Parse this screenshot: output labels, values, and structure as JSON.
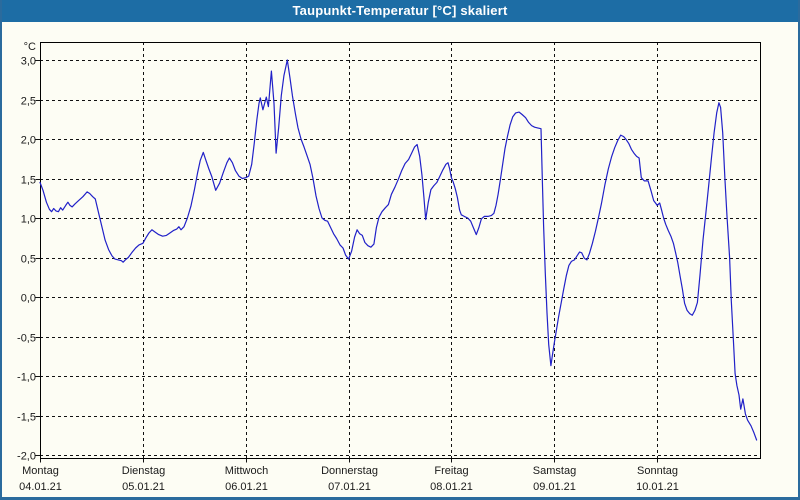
{
  "window": {
    "title": "Taupunkt-Temperatur [°C] skaliert",
    "title_bar_color": "#1d6da5",
    "frame_border_color": "#2b6b9d",
    "background_color": "#fdfdf4"
  },
  "chart_data": {
    "type": "line",
    "title": "Taupunkt-Temperatur [°C] skaliert",
    "grid": "dashed-black",
    "legend": "none",
    "plot_border_color": "#000000",
    "y_axis": {
      "unit_label": "°C",
      "min": -2.0,
      "max": 3.0,
      "step": 0.5,
      "tick_labels": [
        "3,0",
        "2,5",
        "2,0",
        "1,5",
        "1,0",
        "0,5",
        "0,0",
        "-0,5",
        "-1,0",
        "-1,5",
        "-2,0"
      ]
    },
    "x_axis": {
      "hours_total": 168,
      "days": [
        {
          "weekday": "Montag",
          "date": "04.01.21"
        },
        {
          "weekday": "Dienstag",
          "date": "05.01.21"
        },
        {
          "weekday": "Mittwoch",
          "date": "06.01.21"
        },
        {
          "weekday": "Donnerstag",
          "date": "07.01.21"
        },
        {
          "weekday": "Freitag",
          "date": "08.01.21"
        },
        {
          "weekday": "Samstag",
          "date": "09.01.21"
        },
        {
          "weekday": "Sonntag",
          "date": "10.01.21"
        }
      ]
    },
    "series": [
      {
        "name": "Taupunkt-Temperatur",
        "color": "#2121c8",
        "points_t_hours_value_c": [
          [
            0,
            1.45
          ],
          [
            0.7,
            1.35
          ],
          [
            1.5,
            1.2
          ],
          [
            2.2,
            1.11
          ],
          [
            2.7,
            1.08
          ],
          [
            3.2,
            1.12
          ],
          [
            3.7,
            1.09
          ],
          [
            4.3,
            1.08
          ],
          [
            4.8,
            1.13
          ],
          [
            5.3,
            1.1
          ],
          [
            6,
            1.16
          ],
          [
            6.5,
            1.2
          ],
          [
            7,
            1.16
          ],
          [
            7.5,
            1.14
          ],
          [
            8.2,
            1.18
          ],
          [
            9,
            1.22
          ],
          [
            10,
            1.27
          ],
          [
            11,
            1.33
          ],
          [
            11.6,
            1.31
          ],
          [
            12.3,
            1.27
          ],
          [
            12.9,
            1.24
          ],
          [
            13.6,
            1.08
          ],
          [
            14.4,
            0.9
          ],
          [
            15.2,
            0.72
          ],
          [
            16,
            0.6
          ],
          [
            16.8,
            0.52
          ],
          [
            17.5,
            0.48
          ],
          [
            18.3,
            0.47
          ],
          [
            19,
            0.46
          ],
          [
            19.4,
            0.44
          ],
          [
            19.9,
            0.47
          ],
          [
            20.6,
            0.5
          ],
          [
            21.4,
            0.56
          ],
          [
            22.3,
            0.62
          ],
          [
            23.1,
            0.66
          ],
          [
            24,
            0.68
          ],
          [
            24.7,
            0.75
          ],
          [
            25.4,
            0.81
          ],
          [
            26.1,
            0.85
          ],
          [
            26.9,
            0.82
          ],
          [
            27.7,
            0.79
          ],
          [
            28.6,
            0.77
          ],
          [
            29.5,
            0.78
          ],
          [
            30.3,
            0.81
          ],
          [
            31.1,
            0.84
          ],
          [
            31.9,
            0.86
          ],
          [
            32.4,
            0.89
          ],
          [
            32.9,
            0.85
          ],
          [
            33.6,
            0.89
          ],
          [
            34.4,
            1.0
          ],
          [
            35.2,
            1.15
          ],
          [
            36,
            1.35
          ],
          [
            36.8,
            1.58
          ],
          [
            37.4,
            1.73
          ],
          [
            38.1,
            1.83
          ],
          [
            38.7,
            1.73
          ],
          [
            39.4,
            1.62
          ],
          [
            40.1,
            1.52
          ],
          [
            41,
            1.35
          ],
          [
            41.9,
            1.44
          ],
          [
            42.8,
            1.58
          ],
          [
            43.6,
            1.7
          ],
          [
            44.2,
            1.76
          ],
          [
            44.9,
            1.7
          ],
          [
            45.6,
            1.6
          ],
          [
            46.4,
            1.53
          ],
          [
            47.2,
            1.5
          ],
          [
            48,
            1.51
          ],
          [
            48.7,
            1.53
          ],
          [
            49.4,
            1.68
          ],
          [
            50,
            1.95
          ],
          [
            50.6,
            2.25
          ],
          [
            51.1,
            2.45
          ],
          [
            51.4,
            2.52
          ],
          [
            52,
            2.37
          ],
          [
            52.8,
            2.53
          ],
          [
            53.3,
            2.41
          ],
          [
            54,
            2.86
          ],
          [
            54.6,
            2.45
          ],
          [
            55.1,
            1.82
          ],
          [
            55.7,
            2.15
          ],
          [
            56.3,
            2.55
          ],
          [
            56.9,
            2.8
          ],
          [
            57.7,
            3.0
          ],
          [
            58.3,
            2.78
          ],
          [
            58.9,
            2.55
          ],
          [
            59.6,
            2.32
          ],
          [
            60.2,
            2.14
          ],
          [
            60.9,
            2.0
          ],
          [
            61.6,
            1.9
          ],
          [
            62.3,
            1.79
          ],
          [
            63,
            1.68
          ],
          [
            63.7,
            1.5
          ],
          [
            64.4,
            1.28
          ],
          [
            65.1,
            1.12
          ],
          [
            65.8,
            1.0
          ],
          [
            66.5,
            0.97
          ],
          [
            67.1,
            0.96
          ],
          [
            67.8,
            0.88
          ],
          [
            68.5,
            0.8
          ],
          [
            69.2,
            0.74
          ],
          [
            70,
            0.66
          ],
          [
            70.7,
            0.62
          ],
          [
            71.3,
            0.53
          ],
          [
            72,
            0.48
          ],
          [
            72.7,
            0.58
          ],
          [
            73.4,
            0.76
          ],
          [
            74,
            0.85
          ],
          [
            74.6,
            0.8
          ],
          [
            75.2,
            0.78
          ],
          [
            75.8,
            0.69
          ],
          [
            76.5,
            0.65
          ],
          [
            77.2,
            0.63
          ],
          [
            77.9,
            0.67
          ],
          [
            78.5,
            0.88
          ],
          [
            79.1,
            1.01
          ],
          [
            79.8,
            1.08
          ],
          [
            80.6,
            1.13
          ],
          [
            81.3,
            1.17
          ],
          [
            82,
            1.3
          ],
          [
            82.8,
            1.39
          ],
          [
            83.6,
            1.49
          ],
          [
            84.4,
            1.6
          ],
          [
            85.2,
            1.69
          ],
          [
            86,
            1.74
          ],
          [
            86.7,
            1.82
          ],
          [
            87.4,
            1.9
          ],
          [
            88,
            1.93
          ],
          [
            88.6,
            1.78
          ],
          [
            89.1,
            1.55
          ],
          [
            89.6,
            1.25
          ],
          [
            90,
            0.98
          ],
          [
            90.6,
            1.2
          ],
          [
            91.2,
            1.36
          ],
          [
            91.9,
            1.41
          ],
          [
            92.6,
            1.45
          ],
          [
            93.3,
            1.53
          ],
          [
            94,
            1.61
          ],
          [
            94.7,
            1.68
          ],
          [
            95.2,
            1.7
          ],
          [
            95.6,
            1.62
          ],
          [
            96,
            1.51
          ],
          [
            96.4,
            1.46
          ],
          [
            96.9,
            1.37
          ],
          [
            97.4,
            1.26
          ],
          [
            97.9,
            1.1
          ],
          [
            98.3,
            1.04
          ],
          [
            99,
            1.02
          ],
          [
            99.8,
            1.0
          ],
          [
            100.5,
            0.96
          ],
          [
            101.1,
            0.88
          ],
          [
            101.8,
            0.79
          ],
          [
            102.4,
            0.88
          ],
          [
            103,
            0.99
          ],
          [
            103.7,
            1.02
          ],
          [
            104.5,
            1.02
          ],
          [
            105.3,
            1.03
          ],
          [
            105.9,
            1.06
          ],
          [
            106.4,
            1.16
          ],
          [
            106.9,
            1.3
          ],
          [
            107.4,
            1.48
          ],
          [
            108,
            1.7
          ],
          [
            108.5,
            1.88
          ],
          [
            109.1,
            2.04
          ],
          [
            109.7,
            2.18
          ],
          [
            110.3,
            2.28
          ],
          [
            111,
            2.33
          ],
          [
            111.8,
            2.34
          ],
          [
            112.5,
            2.31
          ],
          [
            113.3,
            2.27
          ],
          [
            114,
            2.21
          ],
          [
            114.7,
            2.17
          ],
          [
            115.4,
            2.15
          ],
          [
            116.1,
            2.14
          ],
          [
            116.9,
            2.13
          ],
          [
            117.2,
            1.5
          ],
          [
            117.5,
            0.9
          ],
          [
            117.9,
            0.3
          ],
          [
            118.3,
            -0.2
          ],
          [
            118.7,
            -0.6
          ],
          [
            119.2,
            -0.87
          ],
          [
            119.6,
            -0.72
          ],
          [
            120,
            -0.58
          ],
          [
            120.5,
            -0.42
          ],
          [
            121,
            -0.25
          ],
          [
            121.6,
            -0.08
          ],
          [
            122.2,
            0.1
          ],
          [
            122.8,
            0.27
          ],
          [
            123.4,
            0.4
          ],
          [
            124,
            0.45
          ],
          [
            124.7,
            0.47
          ],
          [
            125.3,
            0.52
          ],
          [
            125.9,
            0.57
          ],
          [
            126.4,
            0.56
          ],
          [
            127,
            0.49
          ],
          [
            127.6,
            0.47
          ],
          [
            128.2,
            0.55
          ],
          [
            128.9,
            0.68
          ],
          [
            129.6,
            0.83
          ],
          [
            130.3,
            1.0
          ],
          [
            131,
            1.18
          ],
          [
            131.8,
            1.42
          ],
          [
            132.6,
            1.62
          ],
          [
            133.4,
            1.78
          ],
          [
            134.1,
            1.89
          ],
          [
            134.8,
            1.98
          ],
          [
            135.5,
            2.05
          ],
          [
            136.2,
            2.03
          ],
          [
            136.8,
            1.99
          ],
          [
            137.4,
            1.94
          ],
          [
            138,
            1.87
          ],
          [
            138.6,
            1.82
          ],
          [
            139.2,
            1.78
          ],
          [
            139.8,
            1.76
          ],
          [
            140.3,
            1.51
          ],
          [
            141,
            1.47
          ],
          [
            141.9,
            1.47
          ],
          [
            142.6,
            1.34
          ],
          [
            143.2,
            1.22
          ],
          [
            143.9,
            1.17
          ],
          [
            144,
            1.16
          ],
          [
            144.6,
            1.19
          ],
          [
            145,
            1.11
          ],
          [
            145.5,
            1.0
          ],
          [
            146,
            0.92
          ],
          [
            146.6,
            0.84
          ],
          [
            147.2,
            0.77
          ],
          [
            147.8,
            0.68
          ],
          [
            148.3,
            0.56
          ],
          [
            148.8,
            0.44
          ],
          [
            149.4,
            0.25
          ],
          [
            149.9,
            0.1
          ],
          [
            150.4,
            -0.08
          ],
          [
            151,
            -0.17
          ],
          [
            151.6,
            -0.21
          ],
          [
            152.2,
            -0.23
          ],
          [
            152.8,
            -0.17
          ],
          [
            153.4,
            -0.07
          ],
          [
            154,
            0.28
          ],
          [
            154.7,
            0.72
          ],
          [
            155.4,
            1.08
          ],
          [
            156.1,
            1.45
          ],
          [
            156.7,
            1.78
          ],
          [
            157.3,
            2.08
          ],
          [
            157.9,
            2.33
          ],
          [
            158.4,
            2.46
          ],
          [
            158.8,
            2.4
          ],
          [
            159.3,
            2.08
          ],
          [
            159.8,
            1.5
          ],
          [
            160.3,
            1.02
          ],
          [
            160.9,
            0.5
          ],
          [
            161.3,
            -0.05
          ],
          [
            161.8,
            -0.55
          ],
          [
            162.2,
            -0.97
          ],
          [
            162.6,
            -1.12
          ],
          [
            163.1,
            -1.24
          ],
          [
            163.5,
            -1.42
          ],
          [
            164,
            -1.29
          ],
          [
            164.6,
            -1.48
          ],
          [
            165.1,
            -1.56
          ],
          [
            165.9,
            -1.63
          ],
          [
            166.6,
            -1.72
          ],
          [
            167.2,
            -1.81
          ]
        ]
      }
    ]
  }
}
